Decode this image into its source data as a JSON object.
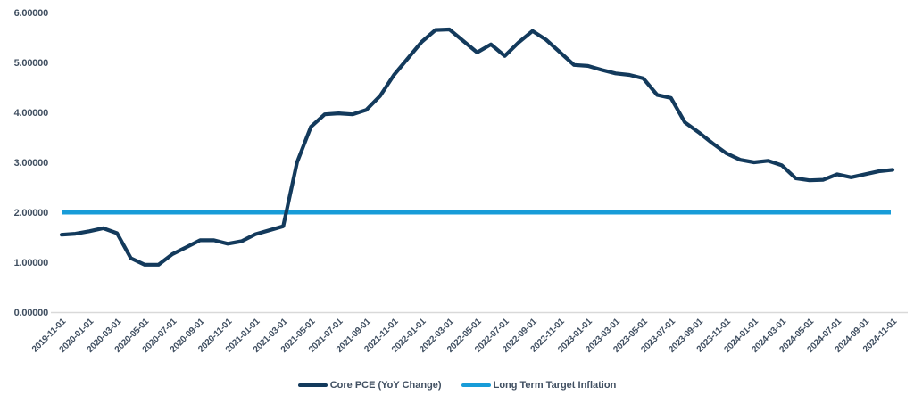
{
  "chart_data": {
    "type": "line",
    "title": "",
    "grid": false,
    "legend_position": "bottom-center",
    "x": [
      "2019-11-01",
      "2019-12-01",
      "2020-01-01",
      "2020-02-01",
      "2020-03-01",
      "2020-04-01",
      "2020-05-01",
      "2020-06-01",
      "2020-07-01",
      "2020-08-01",
      "2020-09-01",
      "2020-10-01",
      "2020-11-01",
      "2020-12-01",
      "2021-01-01",
      "2021-02-01",
      "2021-03-01",
      "2021-04-01",
      "2021-05-01",
      "2021-06-01",
      "2021-07-01",
      "2021-08-01",
      "2021-09-01",
      "2021-10-01",
      "2021-11-01",
      "2021-12-01",
      "2022-01-01",
      "2022-02-01",
      "2022-03-01",
      "2022-04-01",
      "2022-05-01",
      "2022-06-01",
      "2022-07-01",
      "2022-08-01",
      "2022-09-01",
      "2022-10-01",
      "2022-11-01",
      "2022-12-01",
      "2023-01-01",
      "2023-02-01",
      "2023-03-01",
      "2023-04-01",
      "2023-05-01",
      "2023-06-01",
      "2023-07-01",
      "2023-08-01",
      "2023-09-01",
      "2023-10-01",
      "2023-11-01",
      "2023-12-01",
      "2024-01-01",
      "2024-02-01",
      "2024-03-01",
      "2024-04-01",
      "2024-05-01",
      "2024-06-01",
      "2024-07-01",
      "2024-08-01",
      "2024-09-01",
      "2024-10-01",
      "2024-11-01"
    ],
    "x_label_every": 2,
    "ylim": [
      0,
      6
    ],
    "ytick_values": [
      0,
      1,
      2,
      3,
      4,
      5,
      6
    ],
    "ytick_labels": [
      "0.00000",
      "1.00000",
      "2.00000",
      "3.00000",
      "4.00000",
      "5.00000",
      "6.00000"
    ],
    "series": [
      {
        "name": "Core PCE (YoY Change)",
        "type": "line",
        "color": "#133A5C",
        "values": [
          1.55,
          1.57,
          1.62,
          1.68,
          1.58,
          1.08,
          0.95,
          0.95,
          1.16,
          1.3,
          1.44,
          1.44,
          1.37,
          1.42,
          1.56,
          1.64,
          1.72,
          3.0,
          3.71,
          3.96,
          3.98,
          3.96,
          4.05,
          4.33,
          4.75,
          5.08,
          5.41,
          5.65,
          5.66,
          5.43,
          5.2,
          5.36,
          5.13,
          5.4,
          5.63,
          5.45,
          5.2,
          4.95,
          4.93,
          4.85,
          4.78,
          4.75,
          4.68,
          4.35,
          4.29,
          3.8,
          3.6,
          3.38,
          3.18,
          3.05,
          3.0,
          3.03,
          2.94,
          2.68,
          2.64,
          2.65,
          2.76,
          2.7,
          2.76,
          2.82,
          2.85
        ]
      },
      {
        "name": "Long Term Target Inflation",
        "type": "constant-line",
        "color": "#189CD8",
        "value": 2.0
      }
    ]
  },
  "colors": {
    "background": "#FFFFFF",
    "axis_line": "#D9D9D9",
    "tick_text": "#404F61",
    "legend_text": "#404F61"
  }
}
